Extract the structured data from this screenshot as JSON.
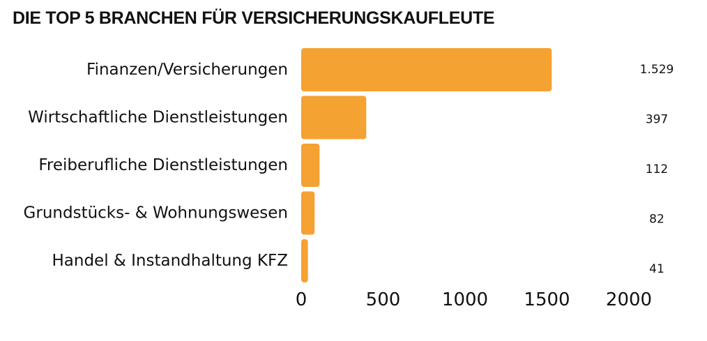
{
  "chart_data": {
    "type": "bar",
    "orientation": "horizontal",
    "title": "DIE TOP 5 BRANCHEN FÜR VERSICHERUNGSKAUFLEUTE",
    "categories": [
      "Finanzen/Versicherungen",
      "Wirtschaftliche Dienstleistungen",
      "Freiberufliche Dienstleistungen",
      "Grundstücks- & Wohnungswesen",
      "Handel & Instandhaltung KFZ"
    ],
    "values": [
      1529,
      397,
      112,
      82,
      41
    ],
    "value_labels": [
      "1.529",
      "397",
      "112",
      "82",
      "41"
    ],
    "xlim": [
      0,
      2000
    ],
    "xticks": [
      0,
      500,
      1000,
      1500,
      2000
    ],
    "xtick_labels": [
      "0",
      "500",
      "1000",
      "1500",
      "2000"
    ],
    "grid": false,
    "legend": "none",
    "bar_color": "#F4A232"
  }
}
